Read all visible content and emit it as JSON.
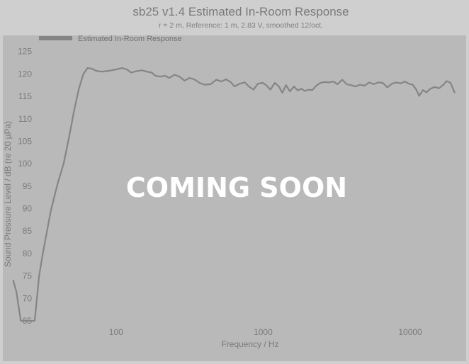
{
  "chart_data": {
    "type": "line",
    "title": "sb25 v1.4 Estimated In-Room Response",
    "subtitle": "r = 2 m,  Reference: 1 m, 2.83 V, smoothed 12/oct.",
    "xlabel": "Frequency / Hz",
    "ylabel": "Sound Pressure Level / dB (re 20 µPa)",
    "x_scale": "log",
    "xlim": [
      17,
      24000
    ],
    "ylim": [
      65,
      127
    ],
    "x_ticks": [
      100,
      1000,
      10000
    ],
    "x_tick_labels": [
      "100",
      "1000",
      "10000"
    ],
    "y_ticks": [
      65,
      70,
      75,
      80,
      85,
      90,
      95,
      100,
      105,
      110,
      115,
      120,
      125
    ],
    "y_tick_labels": [
      "65",
      "70",
      "75",
      "80",
      "85",
      "90",
      "95",
      "100",
      "105",
      "110",
      "115",
      "120",
      "125"
    ],
    "grid": false,
    "legend_position": "top-left",
    "series": [
      {
        "name": "Estimated In-Room Response",
        "color": "#858585",
        "points": [
          [
            20,
            74
          ],
          [
            21,
            71.5
          ],
          [
            22.5,
            65
          ],
          [
            28,
            65
          ],
          [
            30,
            75
          ],
          [
            32,
            80.5
          ],
          [
            36,
            89.5
          ],
          [
            40,
            95.5
          ],
          [
            44,
            100
          ],
          [
            48,
            106
          ],
          [
            52,
            112
          ],
          [
            56,
            116.8
          ],
          [
            60,
            120
          ],
          [
            64,
            121.3
          ],
          [
            68,
            121.2
          ],
          [
            73,
            120.7
          ],
          [
            80,
            120.5
          ],
          [
            90,
            120.7
          ],
          [
            100,
            121
          ],
          [
            110,
            121.3
          ],
          [
            118,
            121
          ],
          [
            127,
            120.3
          ],
          [
            137,
            120.6
          ],
          [
            150,
            120.8
          ],
          [
            162,
            120.5
          ],
          [
            175,
            120.3
          ],
          [
            185,
            119.6
          ],
          [
            200,
            119.4
          ],
          [
            215,
            119.6
          ],
          [
            230,
            119.1
          ],
          [
            250,
            119.8
          ],
          [
            270,
            119.4
          ],
          [
            292,
            118.5
          ],
          [
            315,
            119.1
          ],
          [
            340,
            118.8
          ],
          [
            370,
            118
          ],
          [
            400,
            117.6
          ],
          [
            440,
            117.7
          ],
          [
            480,
            118.7
          ],
          [
            520,
            118.3
          ],
          [
            560,
            118.8
          ],
          [
            600,
            118.2
          ],
          [
            640,
            117.2
          ],
          [
            690,
            117.8
          ],
          [
            750,
            118.1
          ],
          [
            800,
            117.2
          ],
          [
            860,
            116.5
          ],
          [
            920,
            117.8
          ],
          [
            990,
            118
          ],
          [
            1050,
            117.5
          ],
          [
            1120,
            116.5
          ],
          [
            1200,
            118
          ],
          [
            1280,
            117.2
          ],
          [
            1350,
            115.8
          ],
          [
            1430,
            117.5
          ],
          [
            1520,
            116.1
          ],
          [
            1620,
            117.2
          ],
          [
            1720,
            116.3
          ],
          [
            1820,
            116.7
          ],
          [
            1920,
            116.2
          ],
          [
            2030,
            116.5
          ],
          [
            2160,
            116.4
          ],
          [
            2300,
            117.4
          ],
          [
            2450,
            118
          ],
          [
            2620,
            118.2
          ],
          [
            2800,
            118.1
          ],
          [
            3000,
            118.3
          ],
          [
            3200,
            117.7
          ],
          [
            3450,
            118.7
          ],
          [
            3700,
            117.7
          ],
          [
            3950,
            117.5
          ],
          [
            4250,
            117.2
          ],
          [
            4550,
            117.6
          ],
          [
            4900,
            117.4
          ],
          [
            5250,
            118.1
          ],
          [
            5650,
            117.7
          ],
          [
            6050,
            118.1
          ],
          [
            6500,
            118
          ],
          [
            7000,
            117
          ],
          [
            7500,
            117.8
          ],
          [
            8000,
            118.1
          ],
          [
            8600,
            117.9
          ],
          [
            9200,
            118.3
          ],
          [
            9800,
            117.8
          ],
          [
            10400,
            117.6
          ],
          [
            11000,
            116.5
          ],
          [
            11500,
            115.1
          ],
          [
            12200,
            116.4
          ],
          [
            12900,
            115.9
          ],
          [
            13700,
            116.7
          ],
          [
            14700,
            117.1
          ],
          [
            15700,
            116.8
          ],
          [
            16700,
            117.5
          ],
          [
            17700,
            118.4
          ],
          [
            18800,
            118
          ],
          [
            20000,
            115.9
          ]
        ]
      }
    ]
  },
  "overlay": {
    "text": "COMING SOON"
  }
}
